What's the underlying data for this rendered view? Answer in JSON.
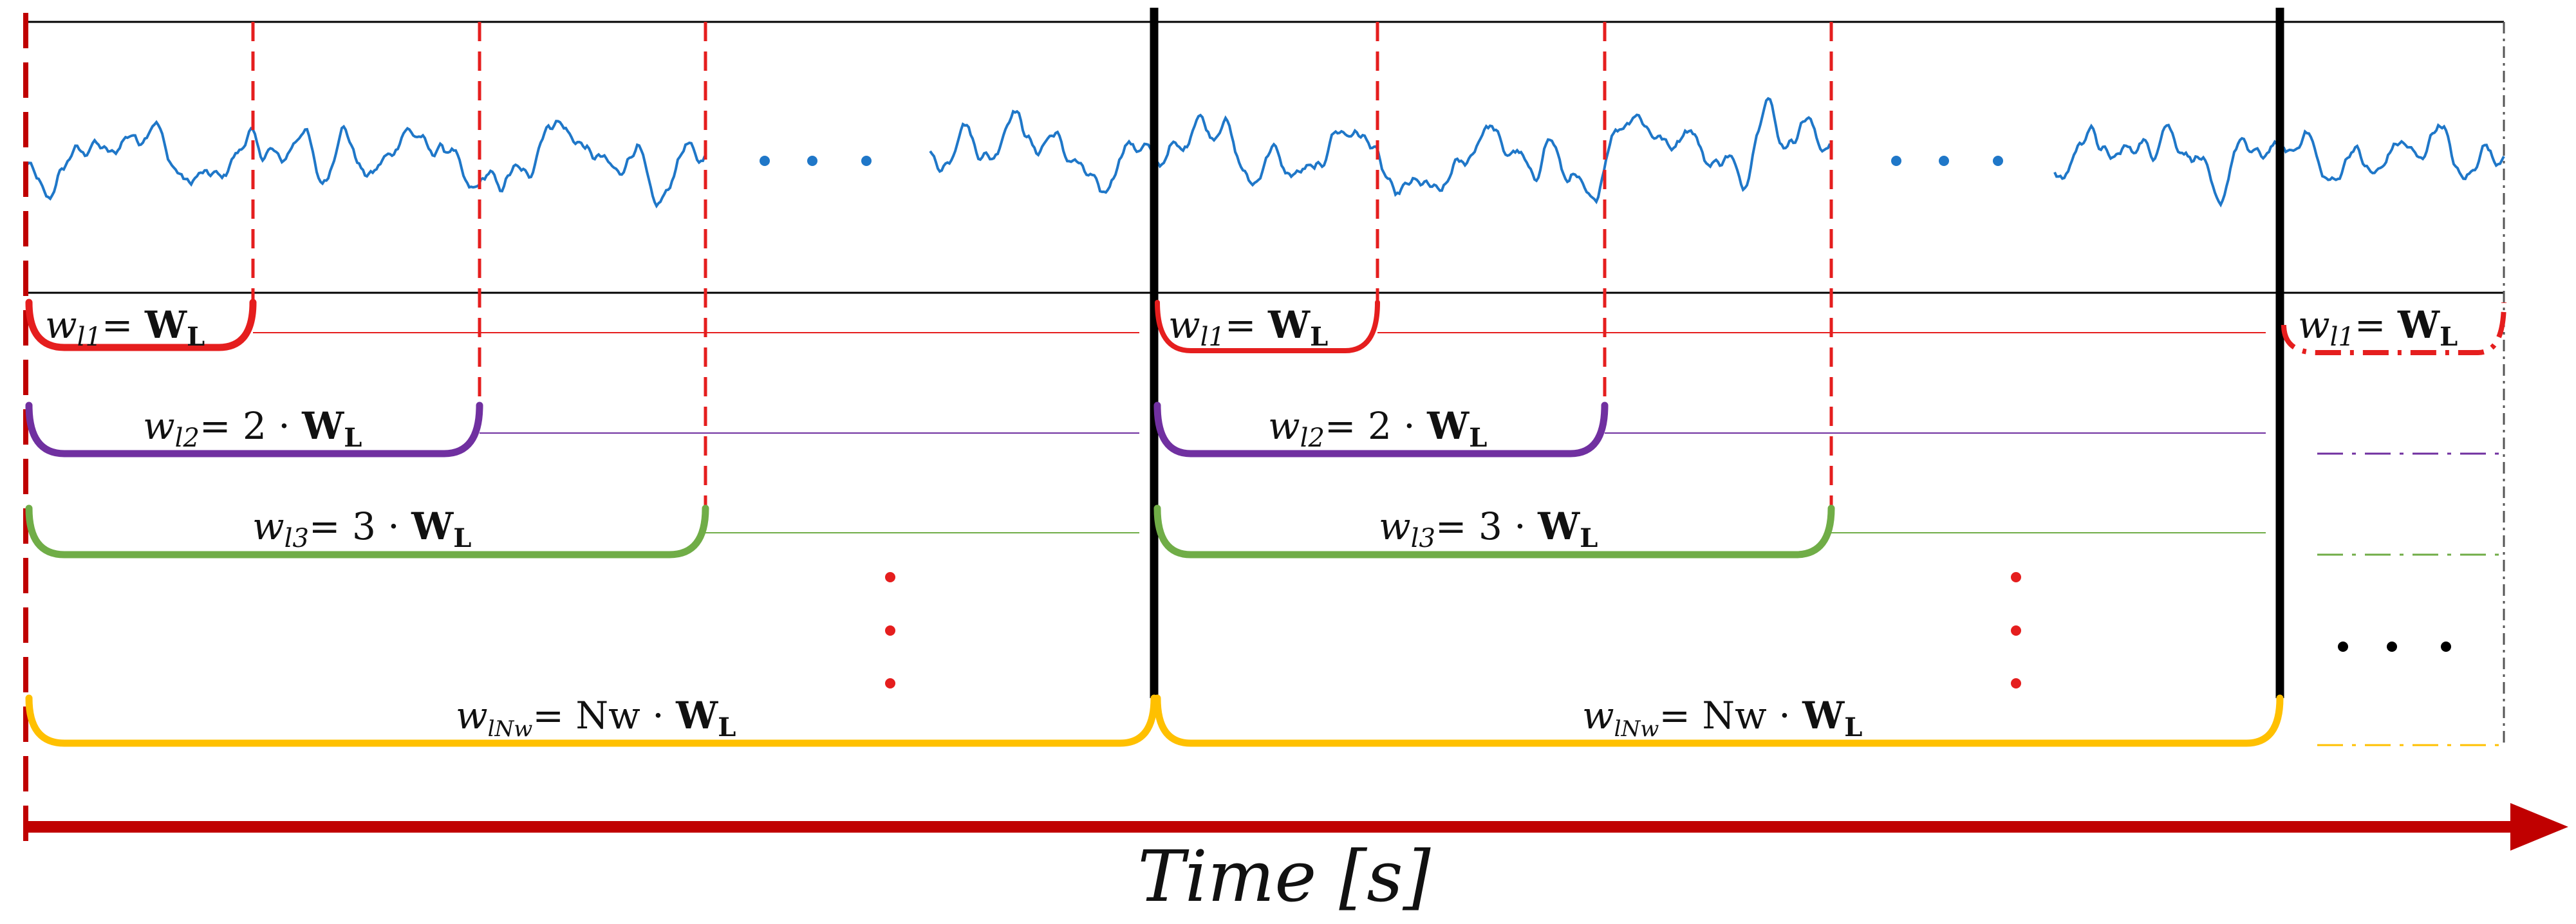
{
  "diagram": {
    "axis": {
      "label": "Time [s]",
      "color": "#c00000"
    },
    "signal": {
      "color": "#1f77c8"
    },
    "colors": {
      "w1": "#e51e1e",
      "w2": "#7030a0",
      "w3": "#70ad47",
      "wN": "#ffc000",
      "boundary": "#000000",
      "vdots": "#e51e1e",
      "hdots_signal": "#1f77c8",
      "hdots_windows": "#000000"
    },
    "window_labels": [
      {
        "name": "wl1",
        "var": "w",
        "sub": "l1",
        "eq": "= ",
        "bold": "W",
        "boldSub": "L"
      },
      {
        "name": "wl2",
        "var": "w",
        "sub": "l2",
        "eq": "= 2 · ",
        "bold": "W",
        "boldSub": "L"
      },
      {
        "name": "wl3",
        "var": "w",
        "sub": "l3",
        "eq": "= 3 · ",
        "bold": "W",
        "boldSub": "L"
      },
      {
        "name": "wlN",
        "var": "w",
        "sub": "lNw",
        "eq": "= Nw · ",
        "bold": "W",
        "boldSub": "L"
      }
    ],
    "segments": 3,
    "ellipsis": "· · ·"
  }
}
